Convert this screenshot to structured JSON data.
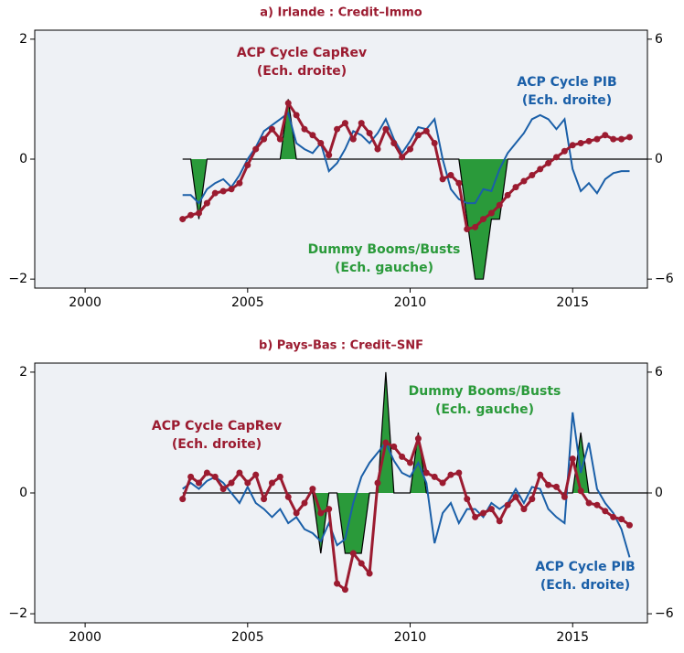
{
  "chart_data": [
    {
      "type": "line",
      "title": "a) Irlande : Credit–Immo",
      "xlim": [
        1998.45,
        2017.3
      ],
      "ylim": [
        -2.15,
        2.15
      ],
      "y2lim": [
        -6.45,
        6.45
      ],
      "xticks": [
        2000,
        2005,
        2010,
        2015
      ],
      "yticks": [
        {
          "value": -2,
          "label": "−2"
        },
        0,
        2
      ],
      "y2ticks": [
        {
          "value": -6,
          "label": "−6"
        },
        0,
        6
      ],
      "x": [
        2003,
        2003.25,
        2003.5,
        2003.75,
        2004,
        2004.25,
        2004.5,
        2004.75,
        2005,
        2005.25,
        2005.5,
        2005.75,
        2006,
        2006.25,
        2006.5,
        2006.75,
        2007,
        2007.25,
        2007.5,
        2007.75,
        2008,
        2008.25,
        2008.5,
        2008.75,
        2009,
        2009.25,
        2009.5,
        2009.75,
        2010,
        2010.25,
        2010.5,
        2010.75,
        2011,
        2011.25,
        2011.5,
        2011.75,
        2012,
        2012.25,
        2012.5,
        2012.75,
        2013,
        2013.25,
        2013.5,
        2013.75,
        2014,
        2014.25,
        2014.5,
        2014.75,
        2015,
        2015.25,
        2015.5,
        2015.75,
        2016,
        2016.25,
        2016.5,
        2016.75
      ],
      "series": [
        {
          "type": "area",
          "color": "#2a9a3a",
          "axis": "y",
          "values": [
            0,
            0,
            -1,
            0,
            0,
            0,
            0,
            0,
            0,
            0,
            0,
            0,
            0,
            1,
            0,
            0,
            0,
            0,
            0,
            0,
            0,
            0,
            0,
            0,
            0,
            0,
            0,
            0,
            0,
            0,
            0,
            0,
            0,
            0,
            0,
            -1,
            -2,
            -2,
            -1,
            -1,
            0,
            0,
            0,
            0,
            0,
            0,
            0,
            0,
            0,
            0,
            0,
            0,
            0,
            0,
            0,
            0
          ]
        },
        {
          "type": "line",
          "color": "#1a5fa8",
          "axis": "y2",
          "values": [
            -1.8,
            -1.8,
            -2.2,
            -1.5,
            -1.2,
            -1.0,
            -1.4,
            -0.8,
            0.0,
            0.6,
            1.4,
            1.7,
            2.0,
            2.3,
            0.8,
            0.5,
            0.3,
            0.8,
            -0.6,
            -0.2,
            0.5,
            1.4,
            1.2,
            0.8,
            1.3,
            2.0,
            1.0,
            0.3,
            0.9,
            1.6,
            1.5,
            2.0,
            0.0,
            -1.5,
            -2.0,
            -2.2,
            -2.2,
            -1.5,
            -1.6,
            -0.5,
            0.3,
            0.8,
            1.3,
            2.0,
            2.2,
            2.0,
            1.5,
            2.0,
            -0.5,
            -1.6,
            -1.2,
            -1.7,
            -1.0,
            -0.7,
            -0.6,
            -0.6
          ]
        },
        {
          "type": "line",
          "marker": true,
          "color": "#9b1b30",
          "axis": "y2",
          "values": [
            -3.0,
            -2.8,
            -2.7,
            -2.2,
            -1.7,
            -1.6,
            -1.5,
            -1.2,
            -0.3,
            0.5,
            1.0,
            1.5,
            1.0,
            2.8,
            2.2,
            1.5,
            1.2,
            0.8,
            0.2,
            1.5,
            1.8,
            1.0,
            1.8,
            1.3,
            0.5,
            1.5,
            0.8,
            0.1,
            0.5,
            1.2,
            1.4,
            0.8,
            -1.0,
            -0.8,
            -1.2,
            -3.5,
            -3.4,
            -3.0,
            -2.7,
            -2.3,
            -1.8,
            -1.4,
            -1.1,
            -0.8,
            -0.5,
            -0.2,
            0.1,
            0.4,
            0.7,
            0.8,
            0.9,
            1.0,
            1.2,
            1.0,
            1.0,
            1.1
          ]
        }
      ],
      "annotations": [
        {
          "color": "#9b1b30",
          "lines": [
            "ACP Cycle CapRev",
            "(Ech. droite)"
          ]
        },
        {
          "color": "#1a5fa8",
          "lines": [
            "ACP Cycle PIB",
            "(Ech. droite)"
          ]
        },
        {
          "color": "#2a9a3a",
          "lines": [
            "Dummy Booms/Busts",
            "(Ech. gauche)"
          ]
        }
      ]
    },
    {
      "type": "line",
      "title": "b) Pays-Bas : Credit–SNF",
      "xlim": [
        1998.45,
        2017.3
      ],
      "ylim": [
        -2.15,
        2.15
      ],
      "y2lim": [
        -6.45,
        6.45
      ],
      "xticks": [
        2000,
        2005,
        2010,
        2015
      ],
      "yticks": [
        {
          "value": -2,
          "label": "−2"
        },
        0,
        2
      ],
      "y2ticks": [
        {
          "value": -6,
          "label": "−6"
        },
        0,
        6
      ],
      "x": [
        2003,
        2003.25,
        2003.5,
        2003.75,
        2004,
        2004.25,
        2004.5,
        2004.75,
        2005,
        2005.25,
        2005.5,
        2005.75,
        2006,
        2006.25,
        2006.5,
        2006.75,
        2007,
        2007.25,
        2007.5,
        2007.75,
        2008,
        2008.25,
        2008.5,
        2008.75,
        2009,
        2009.25,
        2009.5,
        2009.75,
        2010,
        2010.25,
        2010.5,
        2010.75,
        2011,
        2011.25,
        2011.5,
        2011.75,
        2012,
        2012.25,
        2012.5,
        2012.75,
        2013,
        2013.25,
        2013.5,
        2013.75,
        2014,
        2014.25,
        2014.5,
        2014.75,
        2015,
        2015.25,
        2015.5,
        2015.75,
        2016,
        2016.25,
        2016.5,
        2016.75
      ],
      "series": [
        {
          "type": "area",
          "color": "#2a9a3a",
          "axis": "y",
          "values": [
            0,
            0,
            0,
            0,
            0,
            0,
            0,
            0,
            0,
            0,
            0,
            0,
            0,
            0,
            0,
            0,
            0,
            -1,
            0,
            0,
            -1,
            -1,
            -1,
            0,
            0,
            2,
            0,
            0,
            0,
            1,
            0,
            0,
            0,
            0,
            0,
            0,
            0,
            0,
            0,
            0,
            0,
            0,
            0,
            0,
            0,
            0,
            0,
            0,
            0,
            1,
            0,
            0,
            0,
            0,
            0,
            0
          ]
        },
        {
          "type": "line",
          "color": "#1a5fa8",
          "axis": "y2",
          "values": [
            0.2,
            0.5,
            0.2,
            0.6,
            0.8,
            0.5,
            0.0,
            -0.5,
            0.3,
            -0.5,
            -0.8,
            -1.2,
            -0.8,
            -1.5,
            -1.2,
            -1.8,
            -2.0,
            -2.4,
            -1.5,
            -2.6,
            -2.3,
            -0.5,
            0.8,
            1.5,
            2.0,
            2.5,
            1.6,
            1.0,
            0.8,
            1.5,
            0.5,
            -2.5,
            -1.0,
            -0.5,
            -1.5,
            -0.8,
            -0.8,
            -1.2,
            -0.5,
            -0.8,
            -0.5,
            0.2,
            -0.5,
            0.3,
            0.2,
            -0.8,
            -1.2,
            -1.5,
            4.0,
            1.0,
            2.5,
            0.2,
            -0.5,
            -1.0,
            -1.8,
            -3.2
          ]
        },
        {
          "type": "line",
          "marker": true,
          "color": "#9b1b30",
          "axis": "y2",
          "values": [
            -0.3,
            0.8,
            0.5,
            1.0,
            0.8,
            0.2,
            0.5,
            1.0,
            0.5,
            0.9,
            -0.3,
            0.5,
            0.8,
            -0.2,
            -1.0,
            -0.5,
            0.2,
            -1.0,
            -0.8,
            -4.5,
            -4.8,
            -3.0,
            -3.5,
            -4.0,
            0.5,
            2.5,
            2.3,
            1.8,
            1.5,
            2.7,
            1.0,
            0.8,
            0.5,
            0.9,
            1.0,
            -0.3,
            -1.2,
            -1.0,
            -0.8,
            -1.4,
            -0.6,
            -0.2,
            -0.8,
            -0.3,
            0.9,
            0.4,
            0.3,
            -0.2,
            1.7,
            0.1,
            -0.5,
            -0.6,
            -0.9,
            -1.2,
            -1.3,
            -1.6
          ]
        }
      ],
      "annotations": [
        {
          "color": "#2a9a3a",
          "lines": [
            "Dummy Booms/Busts",
            "(Ech. gauche)"
          ]
        },
        {
          "color": "#9b1b30",
          "lines": [
            "ACP Cycle CapRev",
            "(Ech. droite)"
          ]
        },
        {
          "color": "#1a5fa8",
          "lines": [
            "ACP Cycle PIB",
            "(Ech. droite)"
          ]
        }
      ]
    }
  ]
}
